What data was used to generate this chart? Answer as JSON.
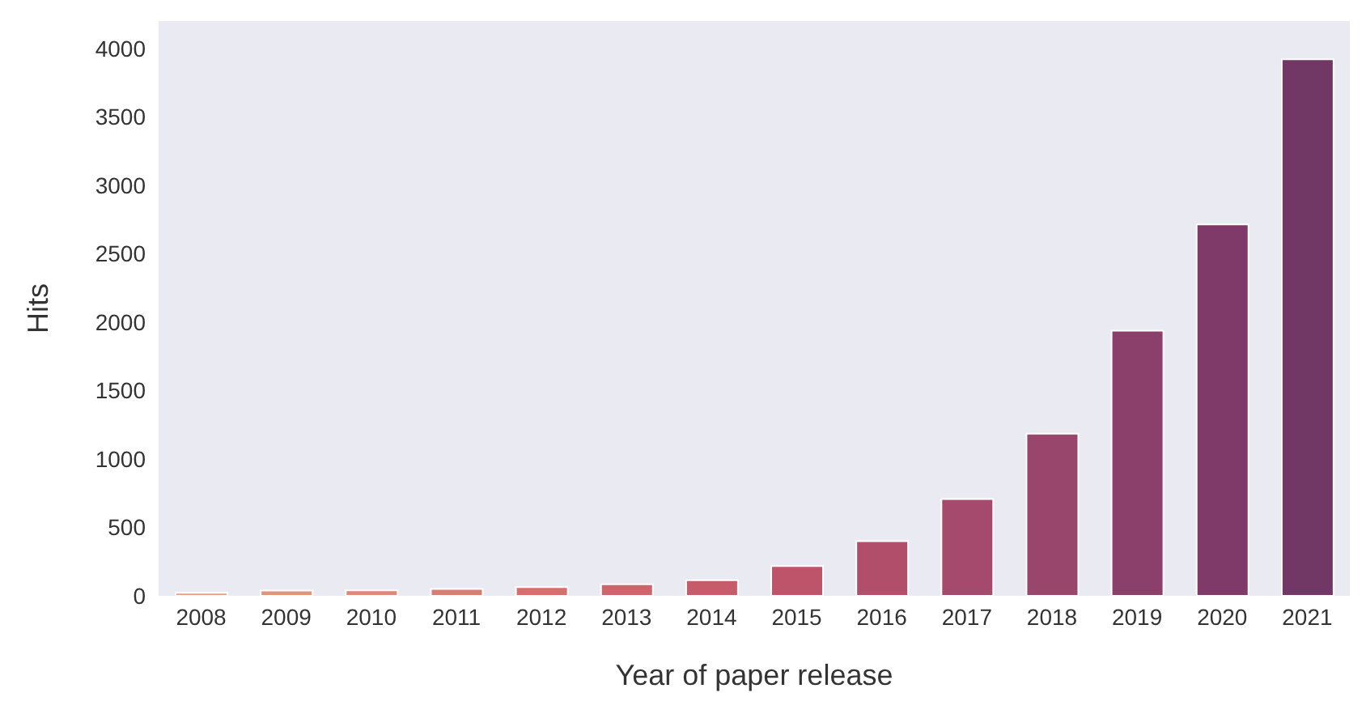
{
  "chart_data": {
    "type": "bar",
    "xlabel": "Year of paper release",
    "ylabel": "Hits",
    "categories": [
      "2008",
      "2009",
      "2010",
      "2011",
      "2012",
      "2013",
      "2014",
      "2015",
      "2016",
      "2017",
      "2018",
      "2019",
      "2020",
      "2021"
    ],
    "values": [
      22,
      38,
      40,
      50,
      63,
      85,
      114,
      217,
      399,
      707,
      1185,
      1938,
      2713,
      3920
    ],
    "colors": [
      "#e9a07c",
      "#e39378",
      "#de8875",
      "#d97c71",
      "#d4716d",
      "#cd656a",
      "#c65b6a",
      "#bd546a",
      "#b14f6b",
      "#a54a6c",
      "#98466c",
      "#8b3f6b",
      "#7f3a6a",
      "#713765"
    ],
    "ylim": [
      0,
      4200
    ],
    "yticks": [
      0,
      500,
      1000,
      1500,
      2000,
      2500,
      3000,
      3500,
      4000
    ],
    "grid": false
  }
}
